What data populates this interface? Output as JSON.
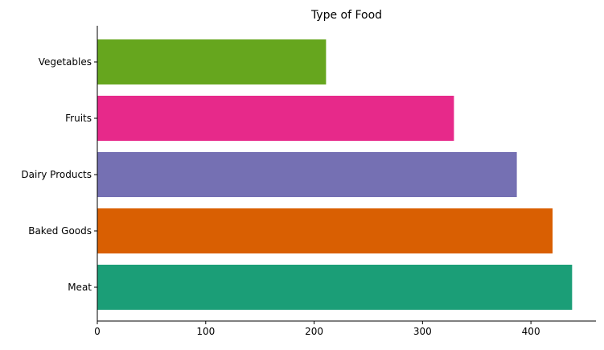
{
  "chart_data": {
    "type": "bar",
    "orientation": "horizontal",
    "title": "Type of Food",
    "xlabel": "",
    "ylabel": "",
    "categories": [
      "Meat",
      "Baked Goods",
      "Dairy Products",
      "Fruits",
      "Vegetables"
    ],
    "values": [
      438,
      420,
      387,
      329,
      211
    ],
    "colors": [
      "#1b9e77",
      "#d95f02",
      "#7570b3",
      "#e7298a",
      "#66a61e"
    ],
    "xlim": [
      0,
      460
    ],
    "xticks": [
      0,
      100,
      200,
      300,
      400
    ],
    "grid": false,
    "legend": "none"
  }
}
